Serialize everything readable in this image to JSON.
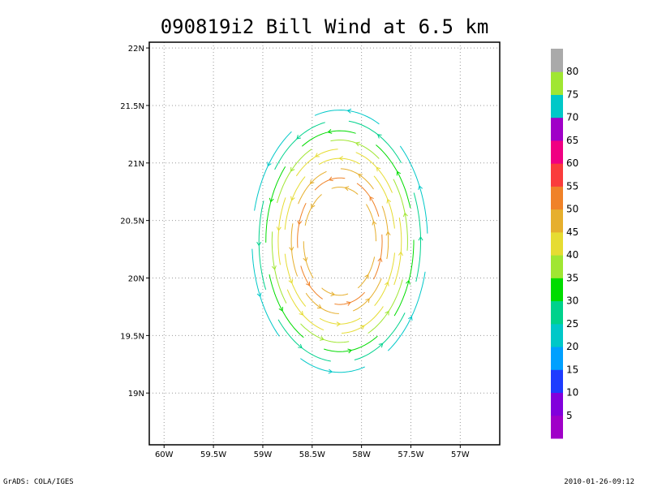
{
  "chart_data": {
    "type": "streamline",
    "title": "090819i2 Bill Wind at 6.5 km",
    "x_ticks": [
      {
        "value": -60,
        "label": "60W"
      },
      {
        "value": -59.5,
        "label": "59.5W"
      },
      {
        "value": -59,
        "label": "59W"
      },
      {
        "value": -58.5,
        "label": "58.5W"
      },
      {
        "value": -58,
        "label": "58W"
      },
      {
        "value": -57.5,
        "label": "57.5W"
      },
      {
        "value": -57,
        "label": "57W"
      }
    ],
    "y_ticks": [
      {
        "value": 19,
        "label": "19N"
      },
      {
        "value": 19.5,
        "label": "19.5N"
      },
      {
        "value": 20,
        "label": "20N"
      },
      {
        "value": 20.5,
        "label": "20.5N"
      },
      {
        "value": 21,
        "label": "21N"
      },
      {
        "value": 21.5,
        "label": "21.5N"
      },
      {
        "value": 22,
        "label": "22N"
      }
    ],
    "xlim": [
      -60.15,
      -56.6
    ],
    "ylim": [
      18.55,
      22.05
    ],
    "grid": true,
    "storm_center": {
      "lon": -58.22,
      "lat": 20.32
    },
    "colorbar": {
      "position": "right",
      "labels": [
        "5",
        "10",
        "15",
        "20",
        "25",
        "30",
        "35",
        "40",
        "45",
        "50",
        "55",
        "60",
        "65",
        "70",
        "75",
        "80"
      ],
      "colors": [
        "#a000c8",
        "#8200dc",
        "#1e3cff",
        "#00a0ff",
        "#00c8c8",
        "#00d28c",
        "#00dc00",
        "#a0e632",
        "#e6dc32",
        "#e6af2d",
        "#f08228",
        "#fa3c3c",
        "#f00082",
        "#a000c8",
        "#00c8c8",
        "#a0e632",
        "#aaaaaa"
      ]
    },
    "rings": [
      {
        "r": 0.47,
        "color": "#e6af2d",
        "sector": "ring"
      },
      {
        "r": 0.55,
        "color": "#f08228",
        "sector": "ring"
      },
      {
        "r": 0.63,
        "color": "#e6af2d",
        "sector": "ring"
      },
      {
        "r": 0.72,
        "color": "#e6dc32",
        "sector": "ring"
      },
      {
        "r": 0.8,
        "color": "#e6dc32",
        "sector": "ring"
      },
      {
        "r": 0.88,
        "color": "#a0e632",
        "sector": "ring"
      },
      {
        "r": 0.96,
        "color": "#00dc00",
        "sector": "ring"
      },
      {
        "r": 1.05,
        "color": "#00d28c",
        "sector": "ring"
      },
      {
        "r": 1.14,
        "color": "#00c8c8",
        "sector": "ring"
      }
    ]
  },
  "footer": {
    "left": "GrADS: COLA/IGES",
    "right": "2010-01-26-09:12"
  }
}
